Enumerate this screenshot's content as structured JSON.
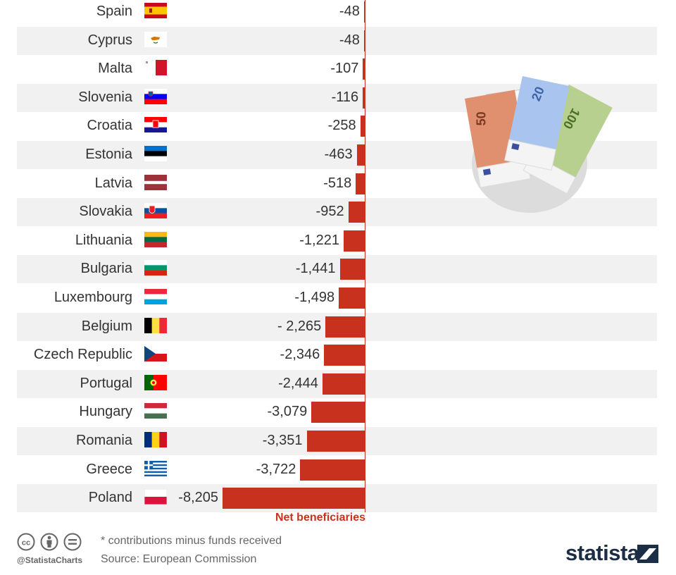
{
  "chart_data": {
    "type": "bar",
    "orientation": "horizontal",
    "categories": [
      "Spain",
      "Cyprus",
      "Malta",
      "Slovenia",
      "Croatia",
      "Estonia",
      "Latvia",
      "Slovakia",
      "Lithuania",
      "Bulgaria",
      "Luxembourg",
      "Belgium",
      "Czech Republic",
      "Portugal",
      "Hungary",
      "Romania",
      "Greece",
      "Poland"
    ],
    "values": [
      -48,
      -48,
      -107,
      -116,
      -258,
      -463,
      -518,
      -952,
      -1221,
      -1441,
      -1498,
      -2265,
      -2346,
      -2444,
      -3079,
      -3351,
      -3722,
      -8205
    ],
    "value_labels": [
      "-48",
      "-48",
      "-107",
      "-116",
      "-258",
      "-463",
      "-518",
      "-952",
      "-1,221",
      "-1,441",
      "-1,498",
      "- 2,265",
      "-2,346",
      "-2,444",
      "-3,079",
      "-3,351",
      "-3,722",
      "-8,205"
    ],
    "xlim": [
      -8205,
      0
    ],
    "bar_color": "#c8311d",
    "axis_annotation": "Net beneficiaries"
  },
  "flags": [
    "es",
    "cy",
    "mt",
    "si",
    "hr",
    "ee",
    "lv",
    "sk",
    "lt",
    "bg",
    "lu",
    "be",
    "cz",
    "pt",
    "hu",
    "ro",
    "gr",
    "pl"
  ],
  "footer": {
    "note": "* contributions minus funds received",
    "source": "Source: European Commission",
    "handle": "@StatistaCharts",
    "brand": "statista"
  },
  "illustration": {
    "note_50": "50",
    "note_20": "20",
    "note_100": "100"
  },
  "colors": {
    "bar": "#c8311d",
    "row_shade": "#f1f1f1",
    "brand": "#1c2e45"
  }
}
